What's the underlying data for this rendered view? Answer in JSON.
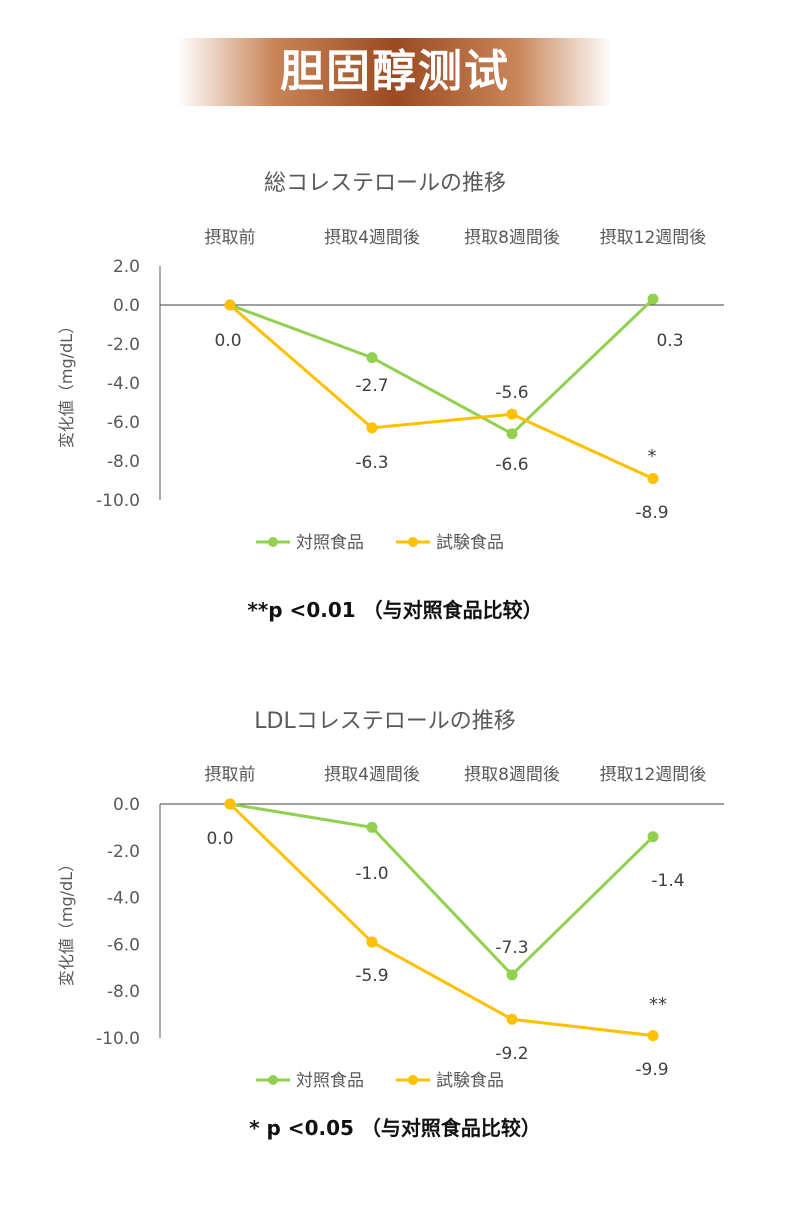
{
  "header": {
    "title": "胆固醇测试"
  },
  "chart_data": [
    {
      "type": "line",
      "title": "総コレステロールの推移",
      "ylabel": "変化値（mg/dL）",
      "categories": [
        "摂取前",
        "摂取4週間後",
        "摂取8週間後",
        "摂取12週間後"
      ],
      "ylim": [
        -10,
        2
      ],
      "yticks": [
        "2.0",
        "0.0",
        "-2.0",
        "-4.0",
        "-6.0",
        "-8.0",
        "-10.0"
      ],
      "series": [
        {
          "name": "対照食品",
          "color": "#92d050",
          "values": [
            0.0,
            -2.7,
            -6.6,
            0.3
          ],
          "labels": [
            "0.0",
            "-2.7",
            "-6.6",
            "0.3"
          ]
        },
        {
          "name": "試験食品",
          "color": "#ffc000",
          "values": [
            0.0,
            -6.3,
            -5.6,
            -8.9
          ],
          "labels": [
            "",
            "-6.3",
            "-5.6",
            "-8.9"
          ]
        }
      ],
      "annotations": [
        "*"
      ],
      "legend": "bottom"
    },
    {
      "type": "line",
      "title": "LDLコレステロールの推移",
      "ylabel": "変化値（mg/dL）",
      "categories": [
        "摂取前",
        "摂取4週間後",
        "摂取8週間後",
        "摂取12週間後"
      ],
      "ylim": [
        -10,
        0
      ],
      "yticks": [
        "0.0",
        "-2.0",
        "-4.0",
        "-6.0",
        "-8.0",
        "-10.0"
      ],
      "series": [
        {
          "name": "対照食品",
          "color": "#92d050",
          "values": [
            0.0,
            -1.0,
            -7.3,
            -1.4
          ],
          "labels": [
            "0.0",
            "-1.0",
            "-7.3",
            "-1.4"
          ]
        },
        {
          "name": "試験食品",
          "color": "#ffc000",
          "values": [
            0.0,
            -5.9,
            -9.2,
            -9.9
          ],
          "labels": [
            "",
            "-5.9",
            "-9.2",
            "-9.9"
          ]
        }
      ],
      "annotations": [
        "**"
      ],
      "legend": "bottom"
    }
  ],
  "notes": {
    "chart1": "**p <0.01 （与对照食品比较）",
    "chart2": "* p <0.05 （与对照食品比较）"
  }
}
